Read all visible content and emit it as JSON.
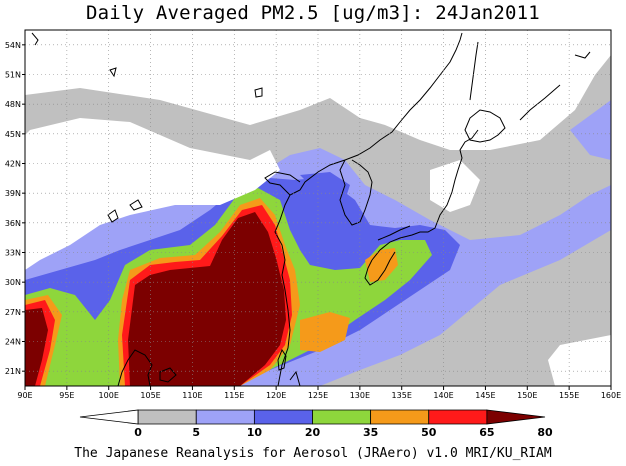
{
  "title": "Daily Averaged PM2.5 [ug/m3]: 24Jan2011",
  "footer": "The Japanese Reanalysis for Aerosol (JRAero) v1.0 MRI/KU_RIAM",
  "map": {
    "lon_range": [
      90,
      160
    ],
    "lat_range": [
      19.5,
      55.5
    ],
    "lon_ticks": [
      "90E",
      "95E",
      "100E",
      "105E",
      "110E",
      "115E",
      "120E",
      "125E",
      "130E",
      "135E",
      "140E",
      "145E",
      "150E",
      "155E",
      "160E"
    ],
    "lat_ticks": [
      "21N",
      "24N",
      "27N",
      "30N",
      "33N",
      "36N",
      "39N",
      "42N",
      "45N",
      "48N",
      "51N",
      "54N"
    ],
    "grid": true,
    "coastline_color": "#000000"
  },
  "colorbar": {
    "labels": [
      "0",
      "5",
      "10",
      "20",
      "35",
      "50",
      "65",
      "80"
    ],
    "colors": [
      "#ffffff",
      "#c0c0c0",
      "#9ea2f7",
      "#5a62ea",
      "#8ed63c",
      "#f59a1a",
      "#ff1a1a",
      "#7c0000"
    ]
  }
}
